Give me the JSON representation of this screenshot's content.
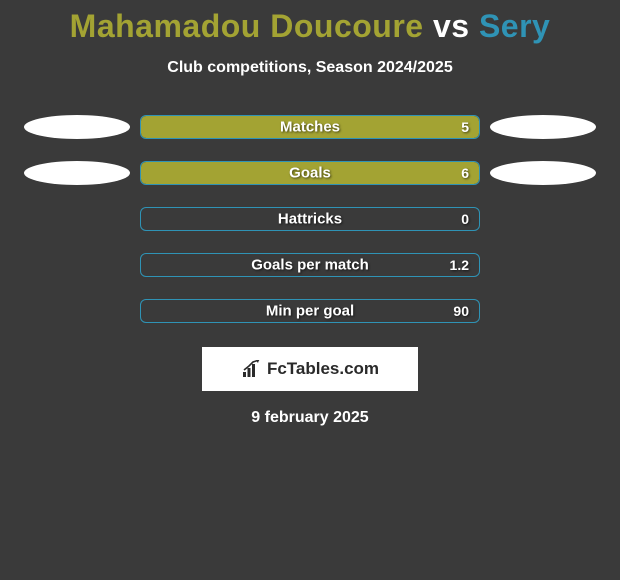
{
  "title": {
    "player1": "Mahamadou Doucoure",
    "vs": "vs",
    "player2": "Sery",
    "player1_color": "#a3a333",
    "vs_color": "#ffffff",
    "player2_color": "#2f93b5"
  },
  "subtitle": "Club competitions, Season 2024/2025",
  "bar_border_color": "#2f93b5",
  "bar_fill_color": "#a3a333",
  "rows": [
    {
      "label": "Matches",
      "value": "5",
      "fill_pct": 100,
      "left_ellipse": true,
      "right_ellipse": true
    },
    {
      "label": "Goals",
      "value": "6",
      "fill_pct": 100,
      "left_ellipse": true,
      "right_ellipse": true
    },
    {
      "label": "Hattricks",
      "value": "0",
      "fill_pct": 0,
      "left_ellipse": false,
      "right_ellipse": false
    },
    {
      "label": "Goals per match",
      "value": "1.2",
      "fill_pct": 0,
      "left_ellipse": false,
      "right_ellipse": false
    },
    {
      "label": "Min per goal",
      "value": "90",
      "fill_pct": 0,
      "left_ellipse": false,
      "right_ellipse": false
    }
  ],
  "logo_text": "FcTables.com",
  "date": "9 february 2025",
  "background_color": "#3a3a3a"
}
